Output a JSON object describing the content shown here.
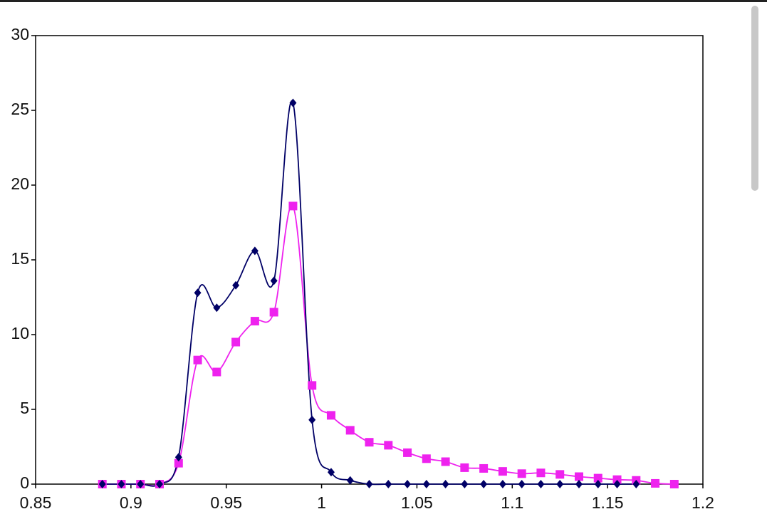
{
  "chart_data": {
    "type": "line",
    "xlim": [
      0.85,
      1.2
    ],
    "xticks": [
      0.85,
      0.9,
      0.95,
      1,
      1.05,
      1.1,
      1.15,
      1.2
    ],
    "ylim": [
      0,
      30
    ],
    "yticks": [
      0,
      5,
      10,
      15,
      20,
      25,
      30
    ],
    "series": [
      {
        "color": "#000066",
        "marker": "diamond",
        "x": [
          0.885,
          0.895,
          0.905,
          0.915,
          0.925,
          0.935,
          0.945,
          0.955,
          0.965,
          0.975,
          0.985,
          0.995,
          1.005,
          1.015,
          1.025,
          1.035,
          1.045,
          1.055,
          1.065,
          1.075,
          1.085,
          1.095,
          1.105,
          1.115,
          1.125,
          1.135,
          1.145,
          1.155,
          1.165
        ],
        "values": [
          0,
          0,
          0,
          0,
          1.8,
          12.8,
          11.8,
          13.3,
          15.6,
          13.6,
          25.5,
          4.3,
          0.8,
          0.25,
          0,
          0,
          0,
          0,
          0,
          0,
          0,
          0,
          0,
          0,
          0,
          0,
          0,
          0,
          0
        ]
      },
      {
        "color": "#ee22ee",
        "marker": "square",
        "x": [
          0.885,
          0.895,
          0.905,
          0.915,
          0.925,
          0.935,
          0.945,
          0.955,
          0.965,
          0.975,
          0.985,
          0.995,
          1.005,
          1.015,
          1.025,
          1.035,
          1.045,
          1.055,
          1.065,
          1.075,
          1.085,
          1.095,
          1.105,
          1.115,
          1.125,
          1.135,
          1.145,
          1.155,
          1.165,
          1.175,
          1.185
        ],
        "values": [
          0,
          0,
          0,
          0,
          1.4,
          8.3,
          7.5,
          9.5,
          10.9,
          11.5,
          18.6,
          6.6,
          4.6,
          3.6,
          2.8,
          2.6,
          2.1,
          1.7,
          1.5,
          1.1,
          1.05,
          0.85,
          0.7,
          0.75,
          0.65,
          0.5,
          0.4,
          0.3,
          0.25,
          0.05,
          0
        ]
      }
    ]
  }
}
